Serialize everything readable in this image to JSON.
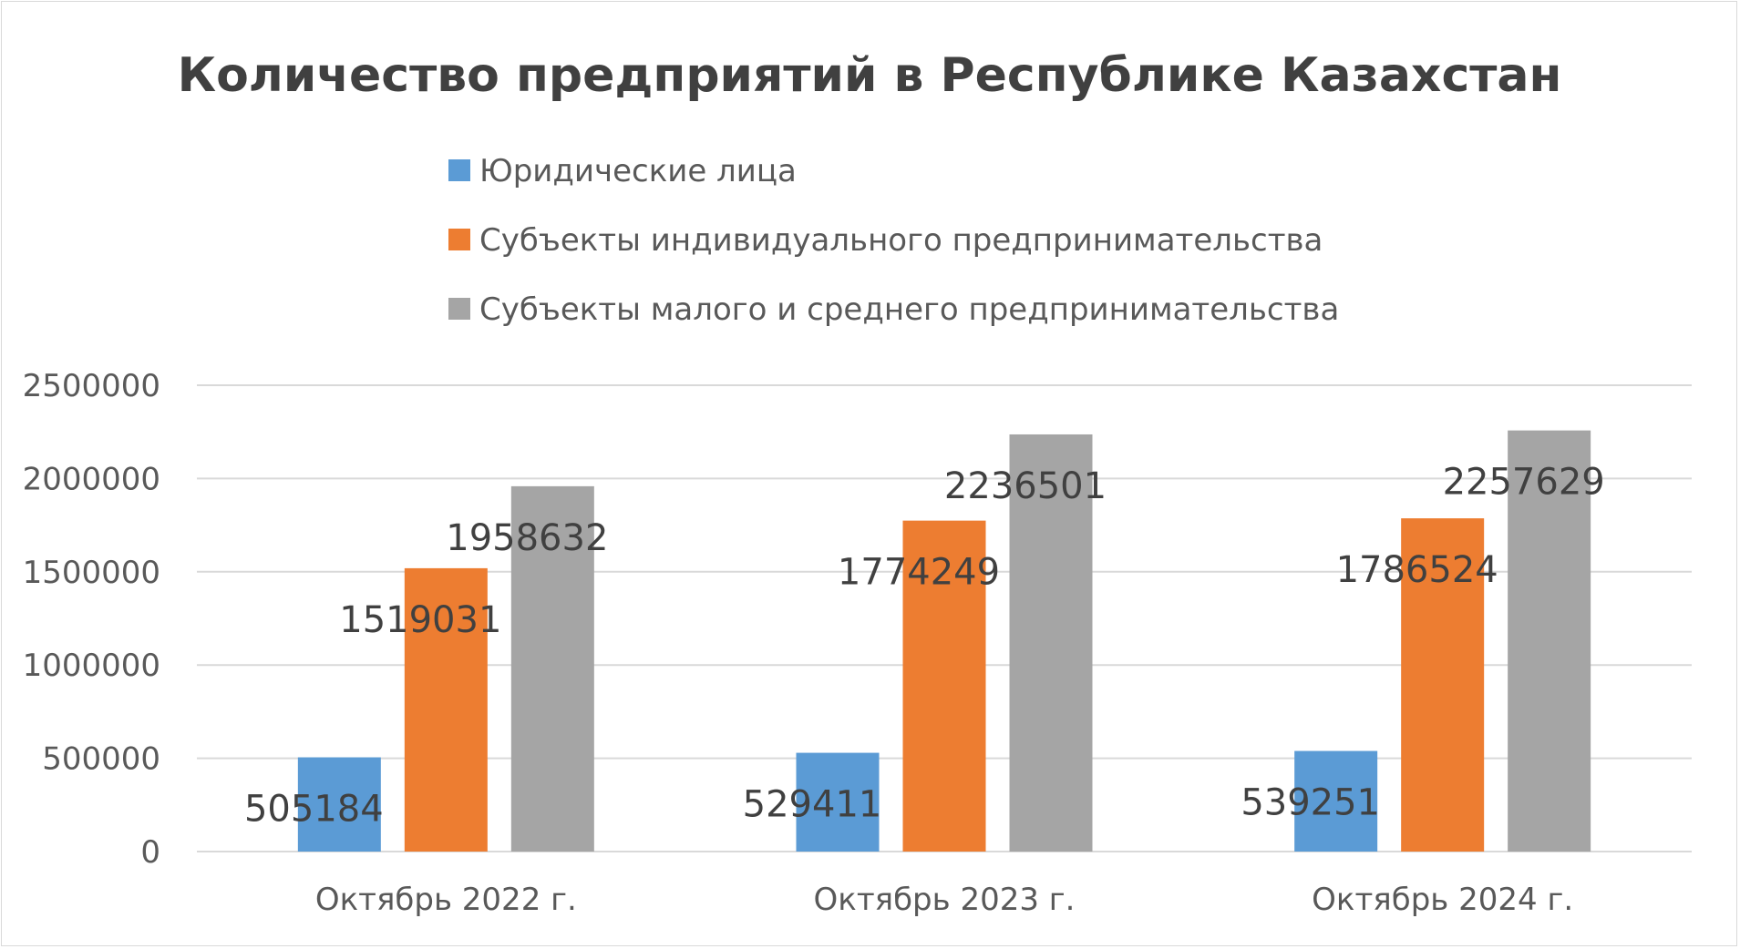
{
  "chart_data": {
    "type": "bar",
    "title": "Количество предприятий в Республике Казахстан",
    "categories": [
      "Октябрь 2022 г.",
      "Октябрь 2023 г.",
      "Октябрь 2024 г."
    ],
    "series": [
      {
        "name": "Юридические лица",
        "color": "#5b9bd5",
        "values": [
          505184,
          529411,
          539251
        ]
      },
      {
        "name": "Субъекты индивидуального предпринимательства",
        "color": "#ed7d31",
        "values": [
          1519031,
          1774249,
          1786524
        ]
      },
      {
        "name": "Субъекты малого и среднего предпринимательства",
        "color": "#a5a5a5",
        "values": [
          1958632,
          2236501,
          2257629
        ]
      }
    ],
    "ylim": [
      0,
      2500000
    ],
    "yticks": [
      0,
      500000,
      1000000,
      1500000,
      2000000,
      2500000
    ],
    "grid": true,
    "legend": "top"
  }
}
